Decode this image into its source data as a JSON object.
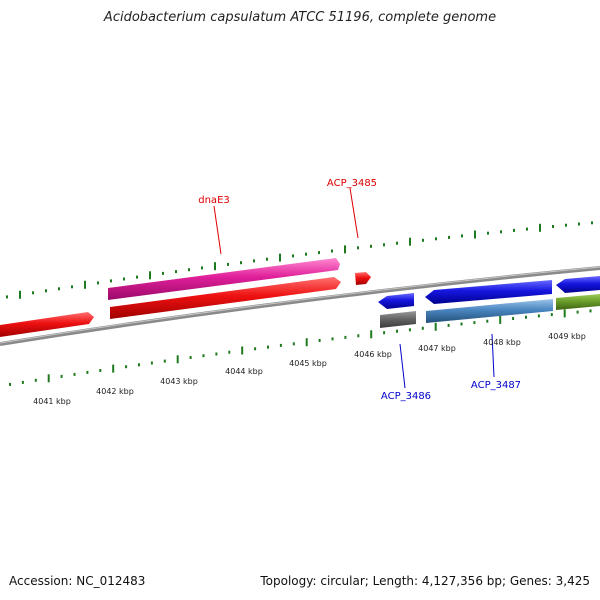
{
  "title": "Acidobacterium capsulatum ATCC 51196, complete genome",
  "footer": {
    "accession": "Accession: NC_012483",
    "topology": "Topology: circular; Length: 4,127,356 bp; Genes: 3,425"
  },
  "scale_labels": [
    "4041 kbp",
    "4042 kbp",
    "4043 kbp",
    "4044 kbp",
    "4045 kbp",
    "4046 kbp",
    "4047 kbp",
    "4048 kbp",
    "4049 kbp"
  ],
  "gene_labels": {
    "dnaE3": "dnaE3",
    "acp3485": "ACP_3485",
    "acp3486": "ACP_3486",
    "acp3487": "ACP_3487"
  },
  "colors": {
    "forward_gene": "#ee1111",
    "cds_magenta": "#e0209a",
    "reverse_gene": "#1616e0",
    "reverse_cds": "#4a86c0",
    "grey_feature": "#666666",
    "olive_feature": "#6b9e2a",
    "backbone": "#8a8a8a",
    "tick": "#1e7a1e",
    "label_red": "#dd0000",
    "label_blue": "#0000cc"
  }
}
